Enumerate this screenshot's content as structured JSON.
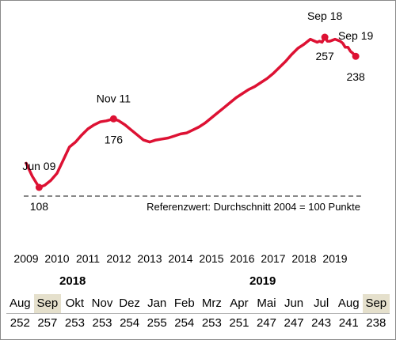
{
  "chart_data": {
    "type": "line",
    "title": "",
    "xlabel": "",
    "ylabel": "",
    "x_ticks": [
      "2009",
      "2010",
      "2011",
      "2012",
      "2013",
      "2014",
      "2015",
      "2016",
      "2017",
      "2018",
      "2019"
    ],
    "ylim": [
      80,
      280
    ],
    "reference": {
      "value": 100,
      "label": "Referenzwert:  Durchschnitt 2004  = 100 Punkte"
    },
    "series": [
      {
        "color": "#dd1133",
        "points": [
          [
            2009.0,
            132
          ],
          [
            2009.2,
            119
          ],
          [
            2009.42,
            108
          ],
          [
            2009.6,
            110
          ],
          [
            2009.8,
            115
          ],
          [
            2010.0,
            122
          ],
          [
            2010.2,
            135
          ],
          [
            2010.4,
            148
          ],
          [
            2010.6,
            153
          ],
          [
            2010.8,
            160
          ],
          [
            2011.0,
            166
          ],
          [
            2011.2,
            170
          ],
          [
            2011.4,
            173
          ],
          [
            2011.6,
            174
          ],
          [
            2011.83,
            176
          ],
          [
            2012.0,
            174
          ],
          [
            2012.2,
            170
          ],
          [
            2012.4,
            165
          ],
          [
            2012.6,
            160
          ],
          [
            2012.8,
            155
          ],
          [
            2013.0,
            153
          ],
          [
            2013.2,
            155
          ],
          [
            2013.4,
            156
          ],
          [
            2013.6,
            157
          ],
          [
            2013.8,
            159
          ],
          [
            2014.0,
            161
          ],
          [
            2014.2,
            162
          ],
          [
            2014.4,
            165
          ],
          [
            2014.6,
            168
          ],
          [
            2014.8,
            172
          ],
          [
            2015.0,
            177
          ],
          [
            2015.2,
            182
          ],
          [
            2015.4,
            187
          ],
          [
            2015.6,
            192
          ],
          [
            2015.8,
            197
          ],
          [
            2016.0,
            201
          ],
          [
            2016.2,
            205
          ],
          [
            2016.4,
            208
          ],
          [
            2016.6,
            212
          ],
          [
            2016.8,
            216
          ],
          [
            2017.0,
            221
          ],
          [
            2017.2,
            227
          ],
          [
            2017.4,
            233
          ],
          [
            2017.6,
            240
          ],
          [
            2017.8,
            246
          ],
          [
            2018.0,
            250
          ],
          [
            2018.2,
            255
          ],
          [
            2018.42,
            252
          ],
          [
            2018.5,
            253
          ],
          [
            2018.58,
            252
          ],
          [
            2018.67,
            257
          ],
          [
            2018.75,
            253
          ],
          [
            2018.83,
            253
          ],
          [
            2018.92,
            254
          ],
          [
            2019.0,
            255
          ],
          [
            2019.08,
            254
          ],
          [
            2019.17,
            253
          ],
          [
            2019.25,
            251
          ],
          [
            2019.33,
            247
          ],
          [
            2019.42,
            247
          ],
          [
            2019.5,
            243
          ],
          [
            2019.58,
            241
          ],
          [
            2019.67,
            238
          ]
        ]
      }
    ],
    "annotations": [
      {
        "text": "Jun 09",
        "x": 2009.42,
        "y": 108
      },
      {
        "text": "108",
        "x": 2009.42,
        "y": 108
      },
      {
        "text": "Nov 11",
        "x": 2011.83,
        "y": 176
      },
      {
        "text": "176",
        "x": 2011.83,
        "y": 176
      },
      {
        "text": "Sep 18",
        "x": 2018.67,
        "y": 257
      },
      {
        "text": "257",
        "x": 2018.67,
        "y": 257
      },
      {
        "text": "Sep 19",
        "x": 2019.67,
        "y": 238
      },
      {
        "text": "238",
        "x": 2019.67,
        "y": 238
      }
    ],
    "markers": [
      {
        "x": 2009.42,
        "y": 108
      },
      {
        "x": 2011.83,
        "y": 176
      },
      {
        "x": 2018.67,
        "y": 257
      },
      {
        "x": 2019.67,
        "y": 238
      }
    ]
  },
  "table": {
    "year_labels": [
      "2018",
      "2019"
    ],
    "months": [
      "Aug",
      "Sep",
      "Okt",
      "Nov",
      "Dez",
      "Jan",
      "Feb",
      "Mrz",
      "Apr",
      "Mai",
      "Jun",
      "Jul",
      "Aug",
      "Sep"
    ],
    "values": [
      "252",
      "257",
      "253",
      "253",
      "254",
      "255",
      "254",
      "253",
      "251",
      "247",
      "247",
      "243",
      "241",
      "238"
    ],
    "highlight_months": [
      "Sep 2018",
      "Sep 2019"
    ],
    "highlight_color": "#e5e0cc"
  }
}
